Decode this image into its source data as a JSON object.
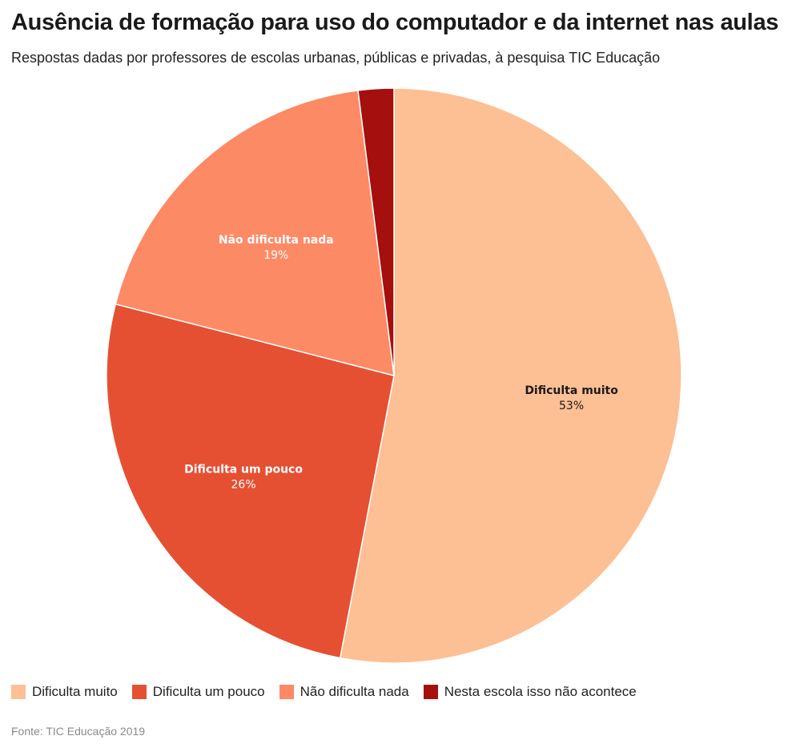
{
  "chart_data": {
    "type": "pie",
    "title": "Ausência de formação para uso do computador e da internet nas aulas",
    "subtitle": "Respostas dadas por professores de escolas urbanas, públicas e privadas, à pesquisa TIC Educação",
    "slices": [
      {
        "name": "Dificulta muito",
        "value": 53,
        "label": "53%",
        "color": "#fdbf94",
        "text_color": "#1a1a1a",
        "show_label": true
      },
      {
        "name": "Dificulta um pouco",
        "value": 26,
        "label": "26%",
        "color": "#e55033",
        "text_color": "#ffffff",
        "show_label": true
      },
      {
        "name": "Não dificulta nada",
        "value": 19,
        "label": "19%",
        "color": "#fc8a65",
        "text_color": "#ffffff",
        "show_label": true
      },
      {
        "name": "Nesta escola isso não acontece",
        "value": 2,
        "label": "2%",
        "color": "#a50f0e",
        "text_color": "#ffffff",
        "show_label": false
      }
    ],
    "legend_position": "bottom-left",
    "source": "Fonte: TIC Educação 2019"
  }
}
